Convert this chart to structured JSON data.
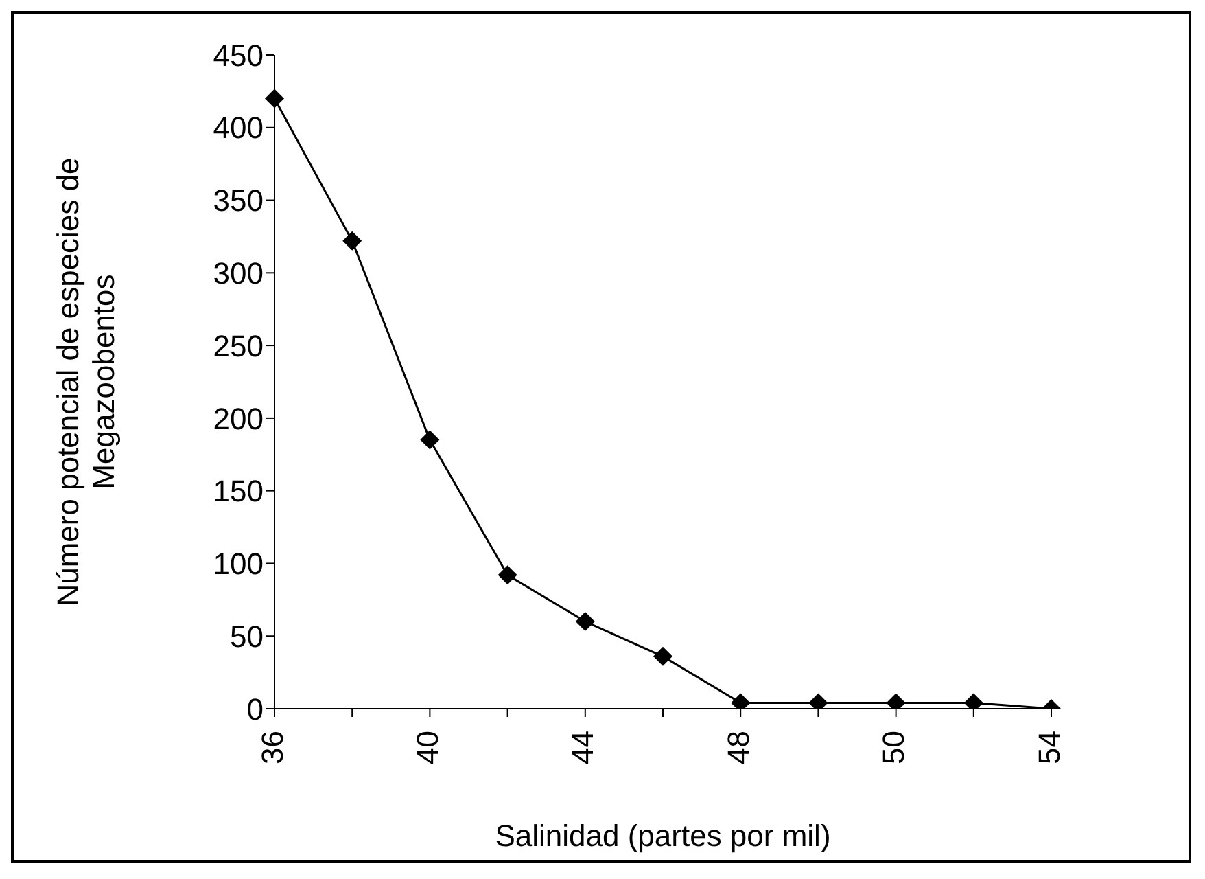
{
  "chart_data": {
    "type": "line",
    "xlabel": "Salinidad (partes por mil)",
    "ylabel": "Número potencial de especies de Megazoobentos",
    "categories": [
      "36",
      null,
      "40",
      null,
      "44",
      null,
      "48",
      null,
      "50",
      null,
      "54"
    ],
    "series": [
      {
        "color": "#000000",
        "values": [
          420,
          322,
          185,
          92,
          60,
          36,
          4,
          4,
          4,
          4,
          0
        ]
      }
    ],
    "ylim": [
      0,
      450
    ],
    "yticks": [
      0,
      50,
      100,
      150,
      200,
      250,
      300,
      350,
      400,
      450
    ],
    "grid": false,
    "legend": false,
    "marker": "diamond",
    "line_style": "solid"
  }
}
